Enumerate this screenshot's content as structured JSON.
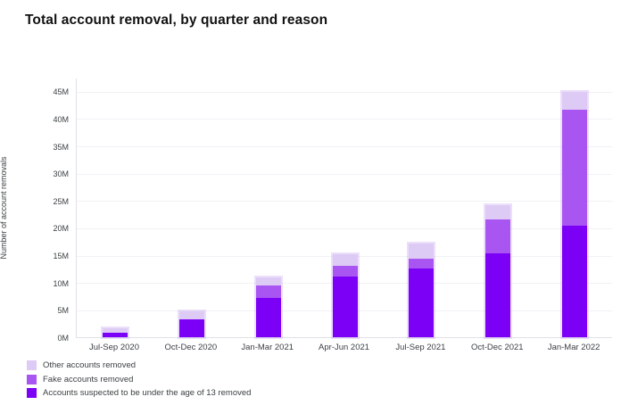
{
  "page": {
    "title": "Total account removal, by quarter and reason"
  },
  "chart_data": {
    "type": "bar",
    "stacked": true,
    "title": "Total account removal, by quarter and reason",
    "xlabel": "",
    "ylabel": "Number of account removals",
    "unit": "millions",
    "categories": [
      "Jul-Sep 2020",
      "Oct-Dec 2020",
      "Jan-Mar 2021",
      "Apr-Jun 2021",
      "Jul-Sep 2021",
      "Oct-Dec 2021",
      "Jan-Mar 2022"
    ],
    "series": [
      {
        "name": "Accounts suspected to be under the age of 13 removed",
        "color": "#7c00f5",
        "values": [
          0.8,
          3.3,
          7.2,
          11.1,
          12.5,
          15.4,
          20.4
        ]
      },
      {
        "name": "Fake accounts removed",
        "color": "#a855f2",
        "values": [
          0,
          0,
          2.3,
          1.9,
          1.9,
          6.1,
          21.3
        ]
      },
      {
        "name": "Other accounts removed",
        "color": "#decbf5",
        "values": [
          0.8,
          1.4,
          1.5,
          2.2,
          2.8,
          2.7,
          3.2
        ]
      }
    ],
    "totals": [
      1.6,
      4.7,
      11.0,
      15.2,
      17.2,
      24.2,
      44.9
    ],
    "ylim": [
      0,
      47.5
    ],
    "yticks": [
      0,
      5,
      10,
      15,
      20,
      25,
      30,
      35,
      40,
      45
    ],
    "ytick_labels": [
      "0M",
      "5M",
      "10M",
      "15M",
      "20M",
      "25M",
      "30M",
      "35M",
      "40M",
      "45M"
    ],
    "grid": true,
    "legend_position": "bottom-left",
    "legend_order_top_to_bottom": [
      "Other accounts removed",
      "Fake accounts removed",
      "Accounts suspected to be under the age of 13 removed"
    ]
  }
}
